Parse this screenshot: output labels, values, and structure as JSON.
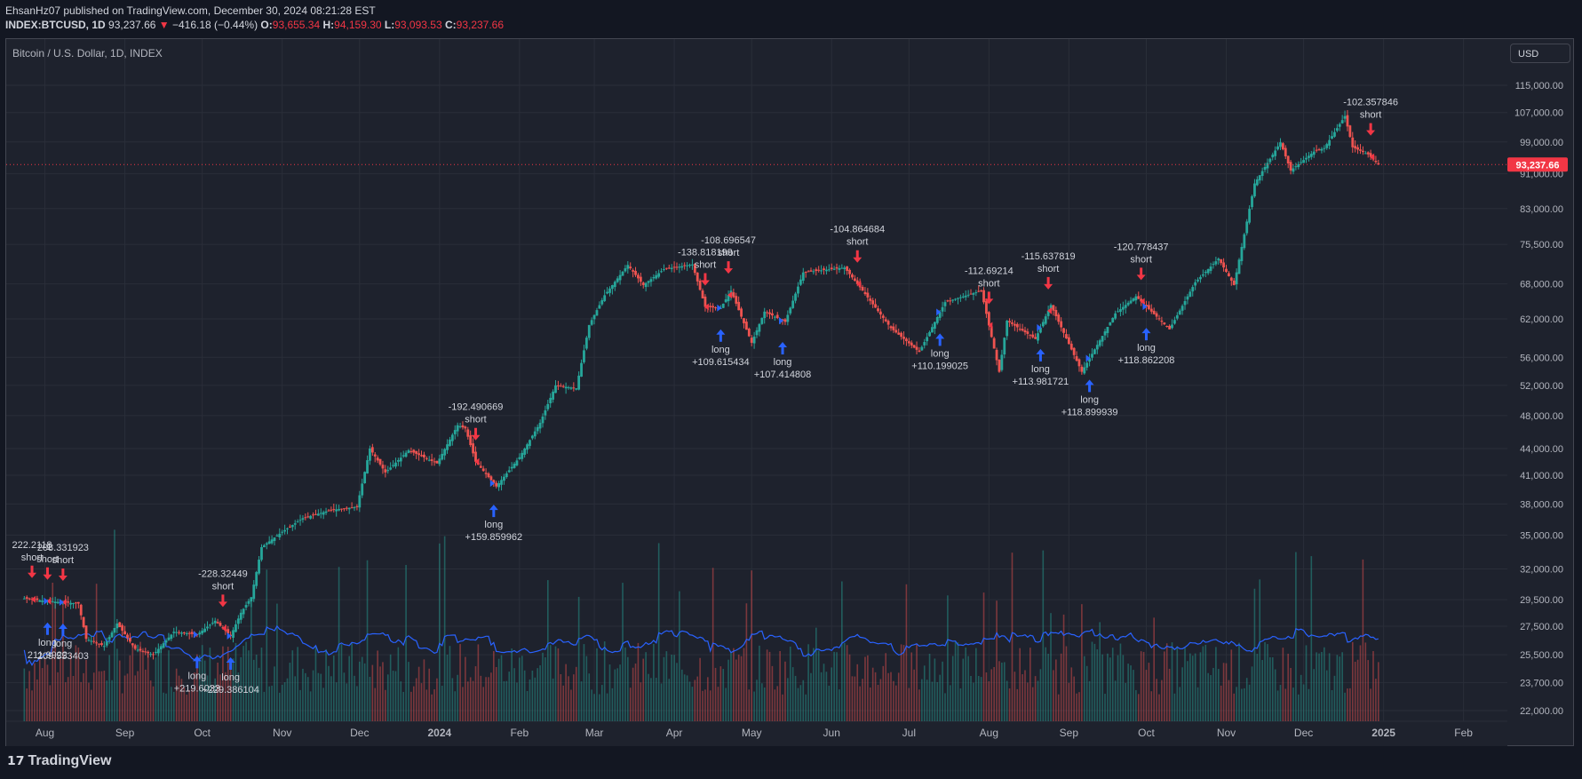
{
  "header": {
    "publisher_line": "EhsanHz07 published on TradingView.com, December 30, 2024 08:21:28 EST",
    "symbol": "INDEX:BTCUSD, 1D",
    "last": "93,237.66",
    "change_arrow": "▼",
    "change": "−416.18 (−0.44%)",
    "o_label": "O:",
    "o_value": "93,655.34",
    "h_label": "H:",
    "h_value": "94,159.30",
    "l_label": "L:",
    "l_value": "93,093.53",
    "c_label": "C:",
    "c_value": "93,237.66"
  },
  "pane_title": "Bitcoin / U.S. Dollar, 1D, INDEX",
  "currency_button": "USD",
  "footer": {
    "brand": "TradingView",
    "icon": "tradingview-logo-icon"
  },
  "colors": {
    "up": "#26a69a",
    "down": "#ef5350",
    "signal_short": "#f23645",
    "signal_long": "#2962ff",
    "volume_ma": "#2962ff",
    "background": "#1e222d"
  },
  "chart_data": {
    "type": "candlestick",
    "title": "Bitcoin / U.S. Dollar, 1D, INDEX",
    "y_scale": "log",
    "y_ticks": [
      "115,000.00",
      "107,000.00",
      "99,000.00",
      "91,000.00",
      "83,000.00",
      "75,500.00",
      "68,000.00",
      "62,000.00",
      "56,000.00",
      "52,000.00",
      "48,000.00",
      "44,000.00",
      "41,000.00",
      "38,000.00",
      "35,000.00",
      "32,000.00",
      "29,500.00",
      "27,500.00",
      "25,500.00",
      "23,700.00",
      "22,000.00"
    ],
    "x_ticks": [
      "Aug",
      "Sep",
      "Oct",
      "Nov",
      "Dec",
      "2024",
      "Feb",
      "Mar",
      "Apr",
      "May",
      "Jun",
      "Jul",
      "Aug",
      "Sep",
      "Oct",
      "Nov",
      "Dec",
      "2025",
      "Feb"
    ],
    "last_price_label": "93,237.66",
    "price_path": [
      [
        "2023-07-24",
        29600
      ],
      [
        "2023-08-01",
        29400
      ],
      [
        "2023-08-08",
        29300
      ],
      [
        "2023-08-14",
        29200
      ],
      [
        "2023-08-17",
        26600
      ],
      [
        "2023-08-24",
        26100
      ],
      [
        "2023-08-29",
        27700
      ],
      [
        "2023-09-05",
        25900
      ],
      [
        "2023-09-12",
        25500
      ],
      [
        "2023-09-20",
        27100
      ],
      [
        "2023-09-29",
        26900
      ],
      [
        "2023-10-06",
        27900
      ],
      [
        "2023-10-12",
        26800
      ],
      [
        "2023-10-16",
        28500
      ],
      [
        "2023-10-20",
        29700
      ],
      [
        "2023-10-24",
        33900
      ],
      [
        "2023-11-01",
        35300
      ],
      [
        "2023-11-09",
        36600
      ],
      [
        "2023-11-20",
        37400
      ],
      [
        "2023-11-30",
        37700
      ],
      [
        "2023-12-05",
        44000
      ],
      [
        "2023-12-11",
        41300
      ],
      [
        "2023-12-20",
        43800
      ],
      [
        "2023-12-31",
        42300
      ],
      [
        "2024-01-08",
        46800
      ],
      [
        "2024-01-11",
        46400
      ],
      [
        "2024-01-15",
        42500
      ],
      [
        "2024-01-23",
        39800
      ],
      [
        "2024-02-01",
        43000
      ],
      [
        "2024-02-09",
        47100
      ],
      [
        "2024-02-15",
        52000
      ],
      [
        "2024-02-23",
        51600
      ],
      [
        "2024-02-28",
        61000
      ],
      [
        "2024-03-05",
        66000
      ],
      [
        "2024-03-14",
        71500
      ],
      [
        "2024-03-20",
        67800
      ],
      [
        "2024-03-28",
        70700
      ],
      [
        "2024-04-08",
        71600
      ],
      [
        "2024-04-13",
        64000
      ],
      [
        "2024-04-19",
        63800
      ],
      [
        "2024-04-23",
        66800
      ],
      [
        "2024-05-01",
        58200
      ],
      [
        "2024-05-06",
        63200
      ],
      [
        "2024-05-14",
        61500
      ],
      [
        "2024-05-21",
        70100
      ],
      [
        "2024-06-06",
        71000
      ],
      [
        "2024-06-12",
        67400
      ],
      [
        "2024-06-24",
        60500
      ],
      [
        "2024-07-05",
        56800
      ],
      [
        "2024-07-15",
        64800
      ],
      [
        "2024-07-29",
        66800
      ],
      [
        "2024-08-05",
        53900
      ],
      [
        "2024-08-08",
        61700
      ],
      [
        "2024-08-19",
        58800
      ],
      [
        "2024-08-25",
        64300
      ],
      [
        "2024-09-06",
        53900
      ],
      [
        "2024-09-19",
        62900
      ],
      [
        "2024-09-27",
        65800
      ],
      [
        "2024-10-10",
        60300
      ],
      [
        "2024-10-20",
        68300
      ],
      [
        "2024-10-29",
        72700
      ],
      [
        "2024-11-04",
        67800
      ],
      [
        "2024-11-12",
        88700
      ],
      [
        "2024-11-22",
        98900
      ],
      [
        "2024-11-26",
        91800
      ],
      [
        "2024-12-05",
        96500
      ],
      [
        "2024-12-09",
        97400
      ],
      [
        "2024-12-17",
        106000
      ],
      [
        "2024-12-20",
        97600
      ],
      [
        "2024-12-26",
        95800
      ],
      [
        "2024-12-30",
        93237.66
      ]
    ],
    "signals": [
      {
        "date": "2023-07-27",
        "type": "short",
        "value": "222.2118",
        "above": true
      },
      {
        "date": "2023-08-02",
        "type": "short",
        "value": "-1",
        "above": true
      },
      {
        "date": "2023-08-08",
        "type": "short",
        "value": "208.331923",
        "above": true
      },
      {
        "date": "2023-08-02",
        "type": "long",
        "value": "211.9922",
        "above": false
      },
      {
        "date": "2023-08-08",
        "type": "long",
        "value": "209.553403",
        "above": false
      },
      {
        "date": "2023-10-09",
        "type": "short",
        "value": "-228.32449",
        "above": true
      },
      {
        "date": "2023-09-29",
        "type": "long",
        "value": "+219.6033",
        "above": false
      },
      {
        "date": "2023-10-12",
        "type": "long",
        "value": "+229.386104",
        "above": false
      },
      {
        "date": "2024-01-15",
        "type": "short",
        "value": "-192.490669",
        "above": true
      },
      {
        "date": "2024-01-22",
        "type": "long",
        "value": "+159.859962",
        "above": false
      },
      {
        "date": "2024-04-13",
        "type": "short",
        "value": "-138.818199",
        "above": true
      },
      {
        "date": "2024-04-22",
        "type": "short",
        "value": "-108.696547",
        "above": true
      },
      {
        "date": "2024-04-19",
        "type": "long",
        "value": "+109.615434",
        "above": false
      },
      {
        "date": "2024-05-13",
        "type": "long",
        "value": "+107.414808",
        "above": false
      },
      {
        "date": "2024-06-11",
        "type": "short",
        "value": "-104.864684",
        "above": true
      },
      {
        "date": "2024-07-13",
        "type": "long",
        "value": "+110.199025",
        "above": false
      },
      {
        "date": "2024-08-01",
        "type": "short",
        "value": "-112.69214",
        "above": true
      },
      {
        "date": "2024-08-24",
        "type": "short",
        "value": "-115.637819",
        "above": true
      },
      {
        "date": "2024-08-21",
        "type": "long",
        "value": "+113.981721",
        "above": false
      },
      {
        "date": "2024-09-09",
        "type": "long",
        "value": "+118.899939",
        "above": false
      },
      {
        "date": "2024-09-29",
        "type": "short",
        "value": "-120.778437",
        "above": true
      },
      {
        "date": "2024-10-01",
        "type": "long",
        "value": "+118.862208",
        "above": false
      },
      {
        "date": "2024-12-27",
        "type": "short",
        "value": "-102.357846",
        "above": true
      }
    ]
  }
}
